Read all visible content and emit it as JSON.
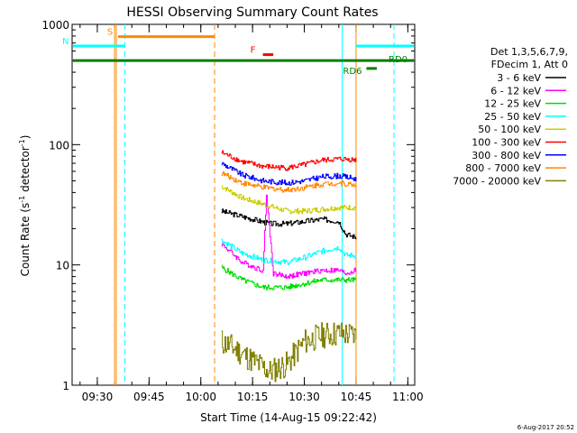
{
  "chart_data": {
    "type": "line",
    "title": "HESSI Observing Summary Count Rates",
    "xlabel": "Start Time (14-Aug-15 09:22:42)",
    "ylabel_main": "Count Rate (s",
    "ylabel_sup1": "-1",
    "ylabel_mid": " detector",
    "ylabel_sup2": "-1",
    "ylabel_end": ")",
    "yscale": "log",
    "ylim": [
      1,
      1000
    ],
    "xlim": [
      "09:22:42",
      "11:02:00"
    ],
    "x_ticks": [
      "09:30",
      "09:45",
      "10:00",
      "10:15",
      "10:30",
      "10:45",
      "11:00"
    ],
    "y_ticks": [
      "1",
      "10",
      "100",
      "1000"
    ],
    "legend_header": [
      "Det 1,3,5,6,7,9,",
      "FDecim 1, Att 0"
    ],
    "date_stamp": "6-Aug-2017 20:52",
    "series": [
      {
        "name": "3 - 6 keV",
        "color": "#000000",
        "x": [
          "10:06",
          "10:15",
          "10:20",
          "10:25",
          "10:30",
          "10:35",
          "10:40",
          "10:42",
          "10:45"
        ],
        "values": [
          28,
          24,
          22,
          22,
          23,
          24,
          23,
          18,
          17
        ]
      },
      {
        "name": "6 - 12 keV",
        "color": "#ff00ff",
        "x": [
          "10:06",
          "10:12",
          "10:18",
          "10:19",
          "10:21",
          "10:25",
          "10:30",
          "10:35",
          "10:40",
          "10:42",
          "10:45"
        ],
        "values": [
          15,
          10.5,
          9,
          38,
          8.5,
          8,
          8.5,
          9,
          9,
          8.5,
          9
        ]
      },
      {
        "name": "12 - 25 keV",
        "color": "#00dd00",
        "x": [
          "10:06",
          "10:12",
          "10:18",
          "10:25",
          "10:30",
          "10:35",
          "10:40",
          "10:45"
        ],
        "values": [
          9.5,
          7.5,
          6.5,
          6.5,
          7,
          7.5,
          7.5,
          7.5
        ]
      },
      {
        "name": "25 - 50 keV",
        "color": "#00ffff",
        "x": [
          "10:06",
          "10:12",
          "10:18",
          "10:25",
          "10:30",
          "10:35",
          "10:40",
          "10:42",
          "10:45"
        ],
        "values": [
          16,
          12.5,
          11,
          10.5,
          11.5,
          13,
          14,
          12,
          12
        ]
      },
      {
        "name": "50 - 100 keV",
        "color": "#cccc00",
        "x": [
          "10:06",
          "10:12",
          "10:18",
          "10:25",
          "10:30",
          "10:35",
          "10:40",
          "10:45"
        ],
        "values": [
          45,
          36,
          32,
          28,
          28,
          29,
          30,
          30
        ]
      },
      {
        "name": "100 - 300 keV",
        "color": "#ff0000",
        "x": [
          "10:06",
          "10:12",
          "10:18",
          "10:25",
          "10:30",
          "10:35",
          "10:40",
          "10:45"
        ],
        "values": [
          86,
          72,
          66,
          64,
          68,
          74,
          76,
          75
        ]
      },
      {
        "name": "300 - 800 keV",
        "color": "#0000ff",
        "x": [
          "10:06",
          "10:12",
          "10:18",
          "10:25",
          "10:30",
          "10:35",
          "10:40",
          "10:45"
        ],
        "values": [
          70,
          56,
          50,
          48,
          50,
          54,
          55,
          52
        ]
      },
      {
        "name": "800 - 7000 keV",
        "color": "#ff8800",
        "x": [
          "10:06",
          "10:12",
          "10:18",
          "10:25",
          "10:30",
          "10:35",
          "10:40",
          "10:45"
        ],
        "values": [
          58,
          48,
          44,
          42,
          44,
          47,
          48,
          46
        ]
      },
      {
        "name": "7000 - 20000 keV",
        "color": "#808000",
        "x": [
          "10:06",
          "10:10",
          "10:15",
          "10:20",
          "10:25",
          "10:30",
          "10:35",
          "10:40",
          "10:45"
        ],
        "values": [
          2.3,
          2.0,
          1.6,
          1.3,
          1.5,
          2.3,
          2.6,
          2.7,
          2.6
        ]
      }
    ],
    "segments": [
      {
        "label": "S",
        "color": "#ff8800",
        "x_start": "09:36",
        "x_end": "10:04",
        "y": 790
      },
      {
        "label": "N",
        "color": "#00ffff",
        "x_start": "09:22:42",
        "x_end": "09:38",
        "y": 660
      },
      {
        "label": "",
        "color": "#00ffff",
        "x_start": "10:45",
        "x_end": "11:02",
        "y": 660
      },
      {
        "label": "F",
        "color": "#ff0000",
        "x_start": "10:18",
        "x_end": "10:21",
        "y": 560
      },
      {
        "label": "RD0",
        "color": "#008000",
        "x_start": "09:22:42",
        "x_end": "11:02",
        "y": 500
      },
      {
        "label": "RD6",
        "color": "#008000",
        "x_start": "10:48",
        "x_end": "10:51",
        "y": 430
      }
    ],
    "vertical_lines": [
      {
        "x": "09:35",
        "color": "#ff8800",
        "style": "solid"
      },
      {
        "x": "09:35:30",
        "color": "#ff8800",
        "style": "solid"
      },
      {
        "x": "09:38",
        "color": "#00ffff",
        "style": "dashed"
      },
      {
        "x": "10:04",
        "color": "#ff8800",
        "style": "dashed"
      },
      {
        "x": "10:41",
        "color": "#00ffff",
        "style": "solid"
      },
      {
        "x": "10:45",
        "color": "#ff8800",
        "style": "solid"
      },
      {
        "x": "10:56",
        "color": "#00ffff",
        "style": "dashed"
      }
    ]
  }
}
